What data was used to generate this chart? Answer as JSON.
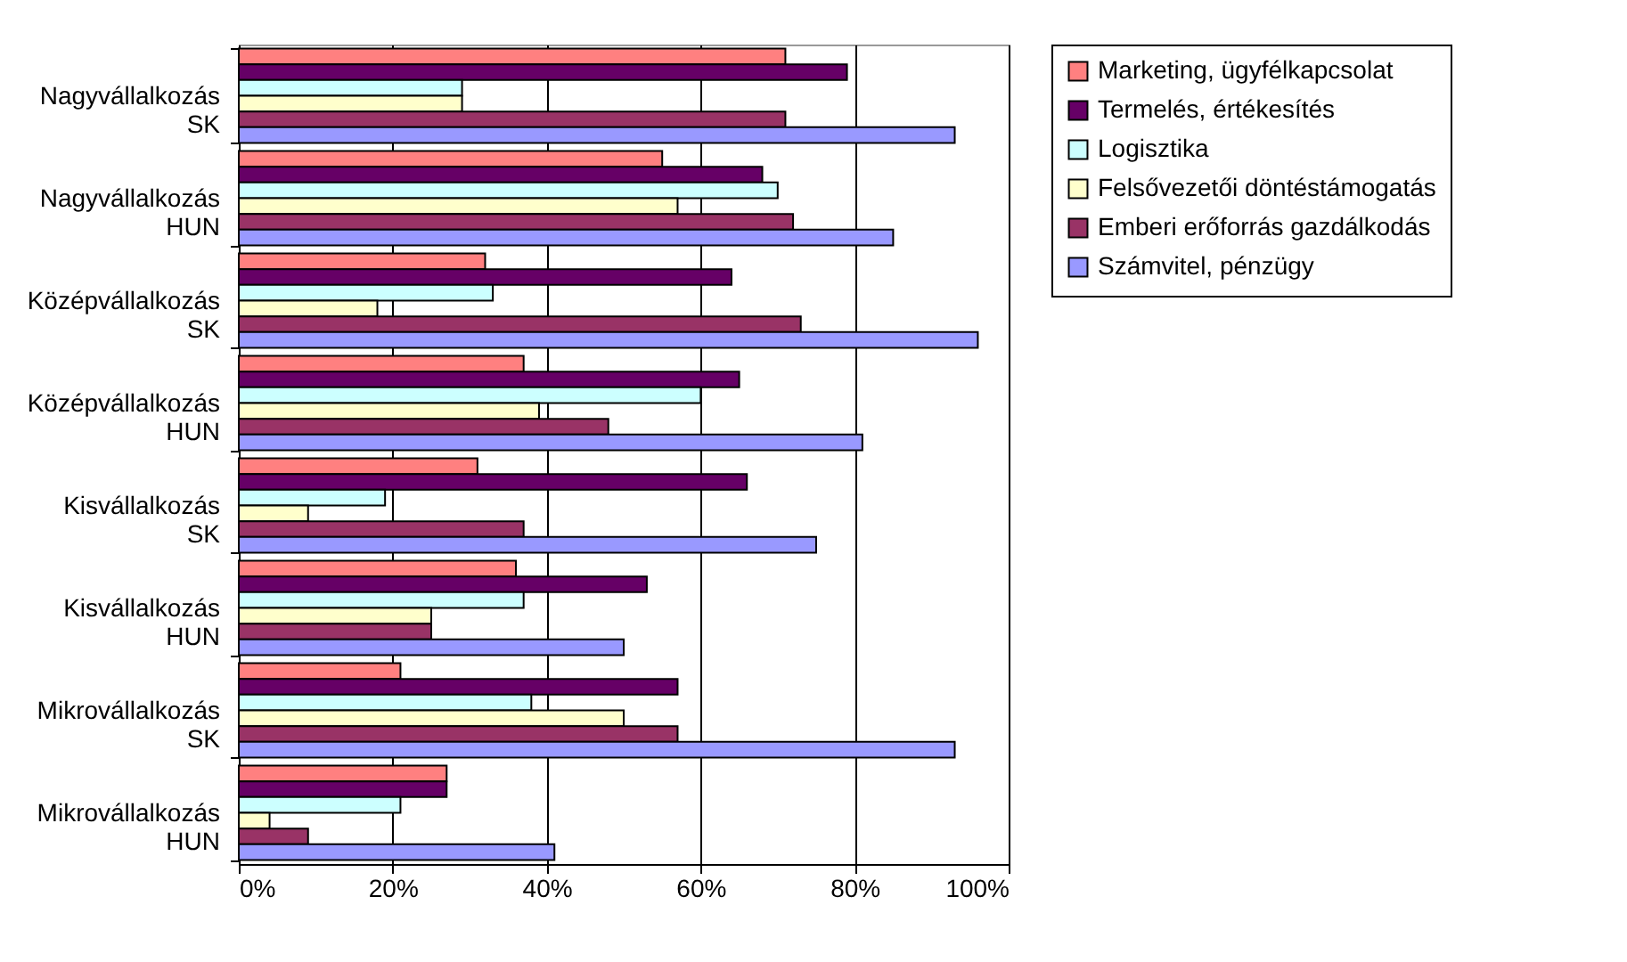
{
  "chart_data": {
    "type": "bar",
    "orientation": "horizontal",
    "categories": [
      "Nagyvállalkozás\nSK",
      "Nagyvállalkozás\nHUN",
      "Középvállalkozás\nSK",
      "Középvállalkozás\nHUN",
      "Kisvállalkozás\nSK",
      "Kisvállalkozás\nHUN",
      "Mikrovállalkozás\nSK",
      "Mikrovállalkozás\nHUN"
    ],
    "series": [
      {
        "name": "Marketing, ügyfélkapcsolat",
        "color": "#ff8080",
        "values": [
          71,
          55,
          32,
          37,
          31,
          36,
          21,
          27
        ]
      },
      {
        "name": "Termelés, értékesítés",
        "color": "#660066",
        "values": [
          79,
          68,
          64,
          65,
          66,
          53,
          57,
          27
        ]
      },
      {
        "name": "Logisztika",
        "color": "#ccffff",
        "values": [
          29,
          70,
          33,
          60,
          19,
          37,
          38,
          21
        ]
      },
      {
        "name": "Felsővezetői döntéstámogatás",
        "color": "#ffffcc",
        "values": [
          29,
          57,
          18,
          39,
          9,
          25,
          50,
          4
        ]
      },
      {
        "name": "Emberi erőforrás gazdálkodás",
        "color": "#993366",
        "values": [
          71,
          72,
          73,
          48,
          37,
          25,
          57,
          9
        ]
      },
      {
        "name": "Számvitel, pénzügy",
        "color": "#9999ff",
        "values": [
          93,
          85,
          96,
          81,
          75,
          50,
          93,
          41
        ]
      }
    ],
    "xlim": [
      0,
      100
    ],
    "xticks": [
      {
        "value": 0,
        "label": "0%"
      },
      {
        "value": 20,
        "label": "20%"
      },
      {
        "value": 40,
        "label": "40%"
      },
      {
        "value": 60,
        "label": "60%"
      },
      {
        "value": 80,
        "label": "80%"
      },
      {
        "value": 100,
        "label": "100%"
      }
    ],
    "grid": "x",
    "legend": "right"
  }
}
